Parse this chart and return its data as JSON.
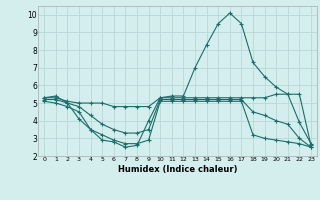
{
  "xlabel": "Humidex (Indice chaleur)",
  "bg_color": "#d4eeee",
  "grid_color": "#b8d8d8",
  "line_color": "#1a6e6a",
  "xlim": [
    -0.5,
    23.5
  ],
  "ylim": [
    2,
    10.5
  ],
  "xticks": [
    0,
    1,
    2,
    3,
    4,
    5,
    6,
    7,
    8,
    9,
    10,
    11,
    12,
    13,
    14,
    15,
    16,
    17,
    18,
    19,
    20,
    21,
    22,
    23
  ],
  "yticks": [
    2,
    3,
    4,
    5,
    6,
    7,
    8,
    9,
    10
  ],
  "line1_x": [
    0,
    1,
    2,
    3,
    4,
    5,
    6,
    7,
    8,
    9,
    10,
    11,
    12,
    13,
    14,
    15,
    16,
    17,
    18,
    19,
    20,
    21,
    22,
    23
  ],
  "line1_y": [
    5.3,
    5.4,
    5.0,
    4.1,
    3.5,
    2.9,
    2.8,
    2.5,
    2.6,
    4.0,
    5.3,
    5.4,
    5.4,
    7.0,
    8.3,
    9.5,
    10.1,
    9.5,
    7.3,
    6.5,
    5.9,
    5.5,
    3.9,
    2.7
  ],
  "line2_x": [
    0,
    1,
    2,
    3,
    4,
    5,
    6,
    7,
    8,
    9,
    10,
    11,
    12,
    13,
    14,
    15,
    16,
    17,
    18,
    19,
    20,
    21,
    22,
    23
  ],
  "line2_y": [
    5.3,
    5.3,
    5.1,
    5.0,
    5.0,
    5.0,
    4.8,
    4.8,
    4.8,
    4.8,
    5.3,
    5.3,
    5.3,
    5.3,
    5.3,
    5.3,
    5.3,
    5.3,
    5.3,
    5.3,
    5.5,
    5.5,
    5.5,
    2.6
  ],
  "line3_x": [
    0,
    1,
    2,
    3,
    4,
    5,
    6,
    7,
    8,
    9,
    10,
    11,
    12,
    13,
    14,
    15,
    16,
    17,
    18,
    19,
    20,
    21,
    22,
    23
  ],
  "line3_y": [
    5.2,
    5.2,
    5.0,
    4.8,
    4.3,
    3.8,
    3.5,
    3.3,
    3.3,
    3.5,
    5.2,
    5.2,
    5.2,
    5.2,
    5.2,
    5.2,
    5.2,
    5.2,
    4.5,
    4.3,
    4.0,
    3.8,
    3.0,
    2.5
  ],
  "line4_x": [
    0,
    1,
    2,
    3,
    4,
    5,
    6,
    7,
    8,
    9,
    10,
    11,
    12,
    13,
    14,
    15,
    16,
    17,
    18,
    19,
    20,
    21,
    22,
    23
  ],
  "line4_y": [
    5.1,
    5.0,
    4.8,
    4.5,
    3.5,
    3.2,
    2.9,
    2.7,
    2.7,
    2.9,
    5.1,
    5.1,
    5.1,
    5.1,
    5.1,
    5.1,
    5.1,
    5.1,
    3.2,
    3.0,
    2.9,
    2.8,
    2.7,
    2.5
  ]
}
